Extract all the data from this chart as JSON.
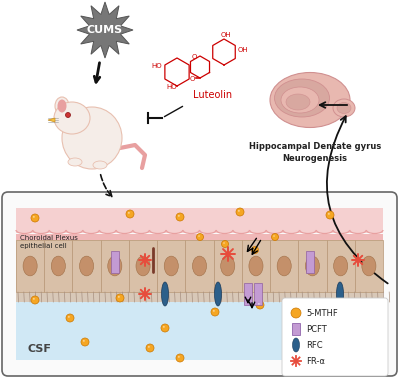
{
  "background_color": "#ffffff",
  "cums_label": "CUMS",
  "luteolin_label": "Luteolin",
  "hippo_label": "Hippocampal Dentate gyrus\nNeurogenesis",
  "csf_label": "CSF",
  "choroid_label": "Choroidal Plexus\nepithelial cell",
  "legend_items": [
    "5-MTHF",
    "PCFT",
    "RFC",
    "FR-α"
  ],
  "legend_colors_dot": "#F5A623",
  "legend_color_pcft": "#C39BD3",
  "legend_color_rfc": "#2C5F8A",
  "legend_color_fra": "#E74C3C",
  "cell_color": "#D9C0A8",
  "cell_border": "#B89878",
  "cell_nucleus": "#C4906A",
  "csf_color": "#D0E8F5",
  "blood_color": "#F5D0D0",
  "blood_wave_color": "#E8A0A0",
  "box_border": "#666666",
  "cums_fill": "#777777",
  "arrow_color": "#111111",
  "luteolin_color": "#CC0000",
  "dot_color": "#F5A623",
  "dot_edge": "#CC7700",
  "rat_body": "#F5EDE8",
  "rat_skin": "#E8C0B0",
  "rat_pink": "#E8A0A0",
  "brain_color": "#E8B8B0",
  "brain_dark": "#D09090",
  "brain_inner": "#D8A8A0"
}
